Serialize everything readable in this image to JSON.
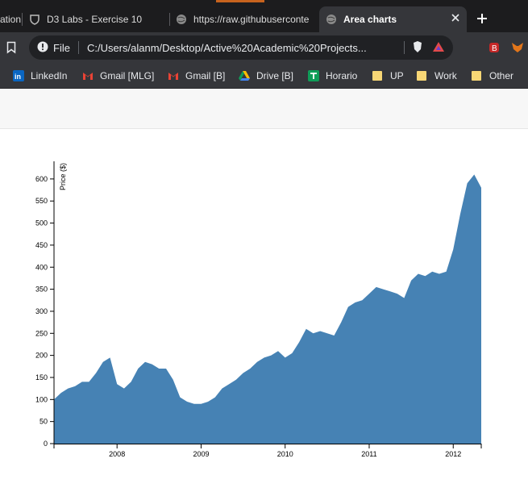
{
  "tabs": [
    {
      "label": "ation",
      "active": false
    },
    {
      "label": "D3 Labs - Exercise 10",
      "active": false
    },
    {
      "label": "https://raw.githubuserconte",
      "active": false
    },
    {
      "label": "Area charts",
      "active": true
    }
  ],
  "toolbar": {
    "site_info_label": "File",
    "url": "C:/Users/alanm/Desktop/Active%20Academic%20Projects..."
  },
  "bookmarks": [
    {
      "label": "LinkedIn",
      "icon": "linkedin-icon"
    },
    {
      "label": "Gmail [MLG]",
      "icon": "gmail-icon"
    },
    {
      "label": "Gmail [B]",
      "icon": "gmail-icon"
    },
    {
      "label": "Drive [B]",
      "icon": "drive-icon"
    },
    {
      "label": "Horario",
      "icon": "sheets-icon"
    },
    {
      "label": "UP",
      "icon": "folder-icon"
    },
    {
      "label": "Work",
      "icon": "folder-icon"
    },
    {
      "label": "Other",
      "icon": "folder-icon"
    }
  ],
  "colors": {
    "area_fill": "#4682b4",
    "accent": "#4682b4"
  },
  "chart_data": {
    "type": "area",
    "title": "",
    "xlabel": "",
    "ylabel": "Price ($)",
    "x_ticks": [
      "2008",
      "2009",
      "2010",
      "2011",
      "2012"
    ],
    "y_ticks": [
      "0",
      "50",
      "100",
      "150",
      "200",
      "250",
      "300",
      "350",
      "400",
      "450",
      "500",
      "550",
      "600"
    ],
    "ylim": [
      0,
      640
    ],
    "xlim": [
      "2007-04",
      "2012-05"
    ],
    "series": [
      {
        "x": [
          "2007-04",
          "2007-05",
          "2007-06",
          "2007-07",
          "2007-08",
          "2007-09",
          "2007-10",
          "2007-11",
          "2007-12",
          "2008-01",
          "2008-02",
          "2008-03",
          "2008-04",
          "2008-05",
          "2008-06",
          "2008-07",
          "2008-08",
          "2008-09",
          "2008-10",
          "2008-11",
          "2008-12",
          "2009-01",
          "2009-02",
          "2009-03",
          "2009-04",
          "2009-05",
          "2009-06",
          "2009-07",
          "2009-08",
          "2009-09",
          "2009-10",
          "2009-11",
          "2009-12",
          "2010-01",
          "2010-02",
          "2010-03",
          "2010-04",
          "2010-05",
          "2010-06",
          "2010-07",
          "2010-08",
          "2010-09",
          "2010-10",
          "2010-11",
          "2010-12",
          "2011-01",
          "2011-02",
          "2011-03",
          "2011-04",
          "2011-05",
          "2011-06",
          "2011-07",
          "2011-08",
          "2011-09",
          "2011-10",
          "2011-11",
          "2011-12",
          "2012-01",
          "2012-02",
          "2012-03",
          "2012-04",
          "2012-05"
        ],
        "values": [
          100,
          115,
          125,
          130,
          140,
          140,
          160,
          185,
          195,
          135,
          125,
          140,
          170,
          185,
          180,
          170,
          170,
          145,
          105,
          95,
          90,
          90,
          95,
          105,
          125,
          135,
          145,
          160,
          170,
          185,
          195,
          200,
          210,
          195,
          205,
          230,
          260,
          250,
          255,
          250,
          245,
          275,
          310,
          320,
          325,
          340,
          355,
          350,
          345,
          340,
          330,
          370,
          385,
          380,
          390,
          385,
          390,
          440,
          520,
          590,
          610,
          580
        ]
      }
    ]
  }
}
